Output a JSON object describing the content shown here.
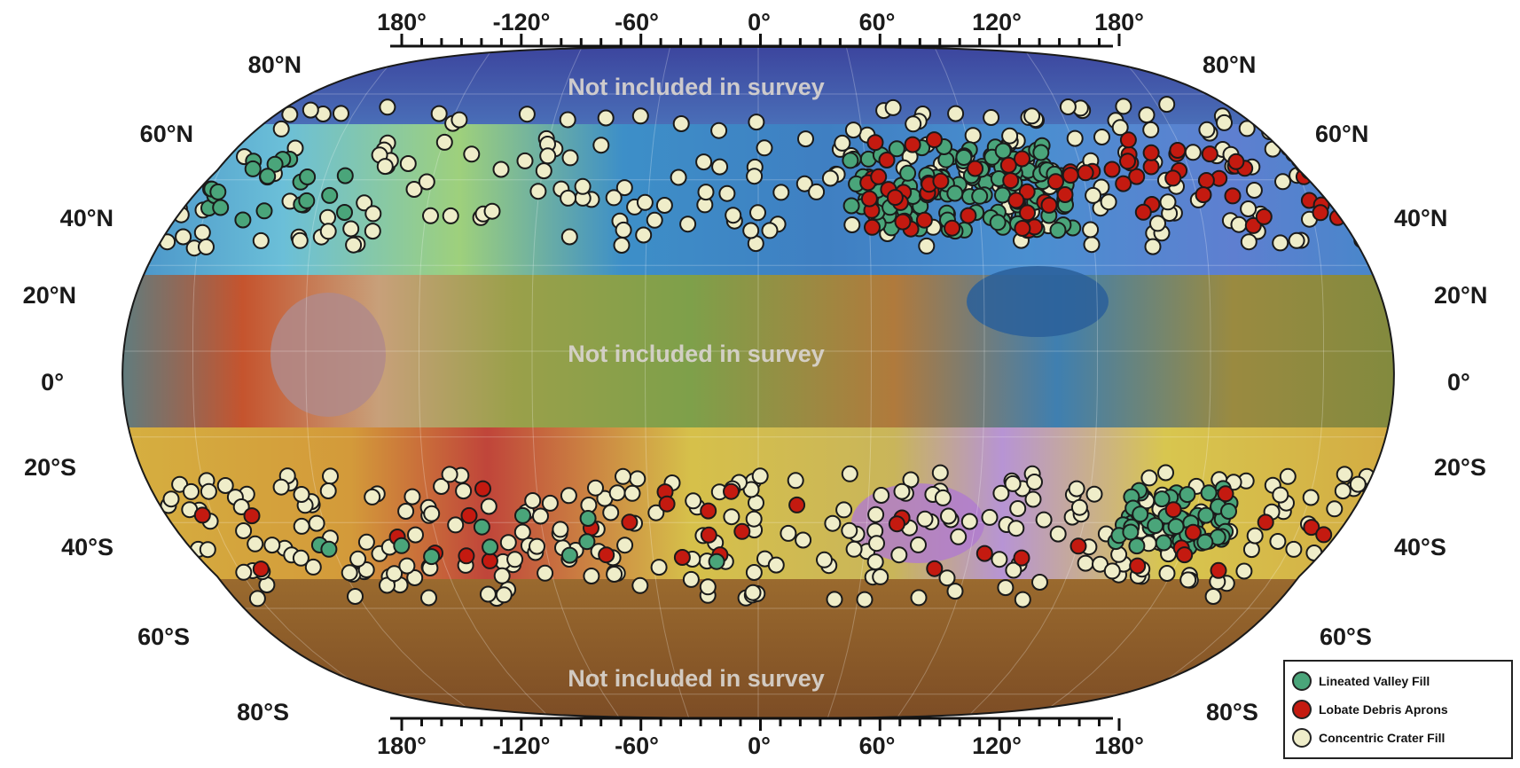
{
  "map": {
    "longitude_labels": [
      "180°",
      "-120°",
      "-60°",
      "0°",
      "60°",
      "120°",
      "180°"
    ],
    "latitude_labels_left": [
      "80°N",
      "60°N",
      "40°N",
      "20°N",
      "0°",
      "20°S",
      "40°S",
      "60°S",
      "80°S"
    ],
    "latitude_labels_right": [
      "80°N",
      "60°N",
      "40°N",
      "20°N",
      "0°",
      "20°S",
      "40°S",
      "60°S",
      "80°S"
    ],
    "excluded_band_labels": [
      "Not included in survey",
      "Not included in survey",
      "Not included in survey"
    ],
    "survey_bands": [
      {
        "from_lat": 20,
        "to_lat": 60
      },
      {
        "from_lat": -60,
        "to_lat": -20
      }
    ],
    "excluded_bands": [
      {
        "from_lat": 60,
        "to_lat": 90
      },
      {
        "from_lat": -20,
        "to_lat": 20
      },
      {
        "from_lat": -90,
        "to_lat": -60
      }
    ]
  },
  "legend": {
    "items": [
      {
        "label": "Lineated Valley Fill",
        "color": "#4aa57a"
      },
      {
        "label": "Lobate Debris Aprons",
        "color": "#c41a10"
      },
      {
        "label": "Concentric Crater Fill",
        "color": "#efedc9"
      }
    ]
  }
}
